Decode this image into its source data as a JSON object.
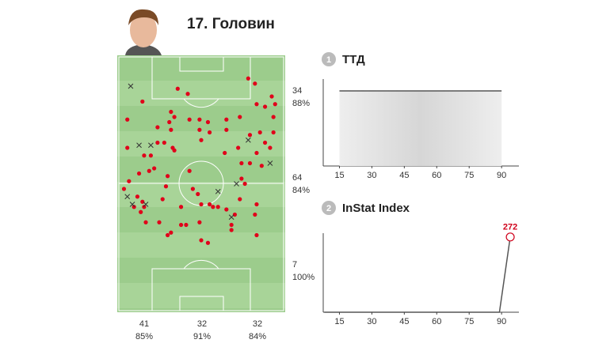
{
  "player": {
    "title": "17. Головин"
  },
  "pitch": {
    "rows": [
      {
        "count": "34",
        "pct": "88%"
      },
      {
        "count": "64",
        "pct": "84%"
      },
      {
        "count": "7",
        "pct": "100%"
      }
    ],
    "columns": [
      {
        "count": "41",
        "pct": "85%"
      },
      {
        "count": "32",
        "pct": "91%"
      },
      {
        "count": "32",
        "pct": "84%"
      }
    ],
    "points": [
      [
        36,
        13
      ],
      [
        15,
        18
      ],
      [
        42,
        15
      ],
      [
        32,
        22
      ],
      [
        78,
        9
      ],
      [
        82,
        11
      ],
      [
        88,
        20
      ],
      [
        92,
        16
      ],
      [
        94,
        19
      ],
      [
        83,
        19
      ],
      [
        6,
        25
      ],
      [
        24,
        28
      ],
      [
        31,
        26
      ],
      [
        32,
        29
      ],
      [
        34,
        24
      ],
      [
        43,
        25
      ],
      [
        49,
        25
      ],
      [
        54,
        26
      ],
      [
        65,
        25
      ],
      [
        73,
        24
      ],
      [
        79,
        31
      ],
      [
        85,
        30
      ],
      [
        93,
        30
      ],
      [
        93,
        24
      ],
      [
        88,
        34
      ],
      [
        6,
        36
      ],
      [
        24,
        34
      ],
      [
        28,
        34
      ],
      [
        33,
        36
      ],
      [
        34,
        37
      ],
      [
        49,
        29
      ],
      [
        50,
        33
      ],
      [
        55,
        30
      ],
      [
        65,
        29
      ],
      [
        72,
        36
      ],
      [
        64,
        38
      ],
      [
        83,
        38
      ],
      [
        91,
        36
      ],
      [
        16,
        39
      ],
      [
        20,
        39
      ],
      [
        19,
        45
      ],
      [
        13,
        46
      ],
      [
        22,
        44
      ],
      [
        30,
        47
      ],
      [
        29,
        51
      ],
      [
        4,
        52
      ],
      [
        7,
        49
      ],
      [
        12,
        55
      ],
      [
        15,
        57
      ],
      [
        16,
        59
      ],
      [
        10,
        59
      ],
      [
        14,
        61
      ],
      [
        17,
        65
      ],
      [
        25,
        65
      ],
      [
        27,
        56
      ],
      [
        38,
        59
      ],
      [
        38,
        66
      ],
      [
        41,
        66
      ],
      [
        30,
        70
      ],
      [
        32,
        69
      ],
      [
        45,
        52
      ],
      [
        48,
        54
      ],
      [
        50,
        58
      ],
      [
        55,
        58
      ],
      [
        57,
        59
      ],
      [
        60,
        59
      ],
      [
        65,
        60
      ],
      [
        70,
        62
      ],
      [
        68,
        66
      ],
      [
        73,
        56
      ],
      [
        74,
        42
      ],
      [
        79,
        42
      ],
      [
        86,
        43
      ],
      [
        74,
        48
      ],
      [
        76,
        50
      ],
      [
        83,
        58
      ],
      [
        82,
        62
      ],
      [
        68,
        68
      ],
      [
        83,
        70
      ],
      [
        49,
        65
      ],
      [
        50,
        72
      ],
      [
        54,
        73
      ],
      [
        43,
        45
      ]
    ],
    "misses": [
      [
        8,
        12
      ],
      [
        13,
        35
      ],
      [
        20,
        35
      ],
      [
        78,
        33
      ],
      [
        91,
        42
      ],
      [
        71,
        50
      ],
      [
        60,
        53
      ],
      [
        6,
        55
      ],
      [
        9,
        58
      ],
      [
        17,
        58
      ],
      [
        68,
        63
      ]
    ]
  },
  "charts": [
    {
      "type": "band",
      "badge": "1",
      "title": "ТТД",
      "xlim": [
        7.5,
        98
      ],
      "xticks": [
        15,
        30,
        45,
        60,
        75,
        90
      ]
    },
    {
      "type": "line",
      "badge": "2",
      "title": "InStat Index",
      "xlim": [
        7.5,
        98
      ],
      "xticks": [
        15,
        30,
        45,
        60,
        75,
        90
      ],
      "ylim": [
        0,
        300
      ],
      "x": [
        8,
        89,
        94
      ],
      "values": [
        0,
        0,
        272
      ],
      "color": "#d0021b"
    }
  ]
}
